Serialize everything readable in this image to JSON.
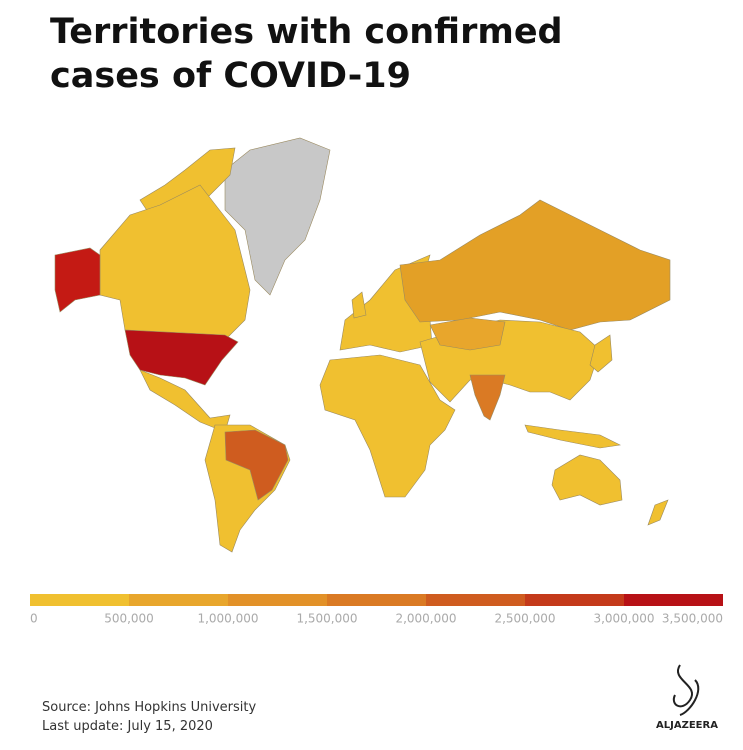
{
  "title": "Territories with confirmed cases of COVID-19",
  "legend": {
    "colors": [
      "#f0c030",
      "#e8a62c",
      "#e29128",
      "#da7a24",
      "#cf5c1f",
      "#c43a1a",
      "#b71116"
    ],
    "ticks": [
      0,
      {
        "value": 500000,
        "label": "500,000"
      },
      {
        "value": 1000000,
        "label": "1,000,000"
      },
      {
        "value": 1500000,
        "label": "1,500,000"
      },
      {
        "value": 2000000,
        "label": "2,000,000"
      },
      {
        "value": 2500000,
        "label": "2,500,000"
      },
      {
        "value": 3000000,
        "label": "3,000,000"
      },
      {
        "value": 3500000,
        "label": "3,500,000"
      }
    ]
  },
  "source": "Source: Johns Hopkins University",
  "last_update": "Last update: July 15, 2020",
  "logo": "ALJAZEERA"
}
